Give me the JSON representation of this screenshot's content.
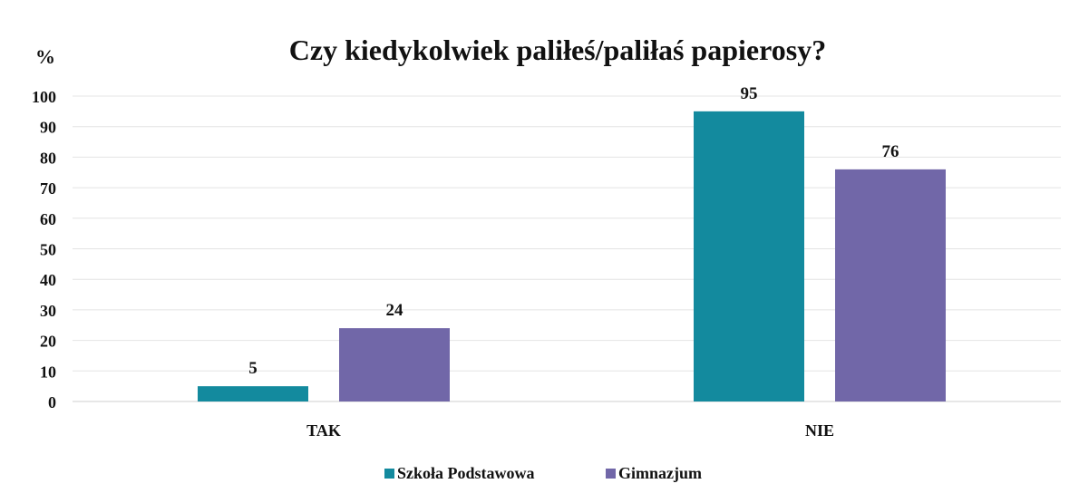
{
  "chart_data": {
    "type": "bar",
    "title": "Czy kiedykolwiek paliłeś/paliłaś papierosy?",
    "ylabel": "%",
    "xlabel": "",
    "categories": [
      "TAK",
      "NIE"
    ],
    "ylim": [
      0,
      100
    ],
    "yticks": [
      0,
      10,
      20,
      30,
      40,
      50,
      60,
      70,
      80,
      90,
      100
    ],
    "grid": true,
    "legend_position": "bottom",
    "series": [
      {
        "name": "Szkoła Podstawowa",
        "values": [
          5,
          95
        ],
        "color": "#138a9e"
      },
      {
        "name": "Gimnazjum",
        "values": [
          24,
          76
        ],
        "color": "#7167a8"
      }
    ]
  }
}
